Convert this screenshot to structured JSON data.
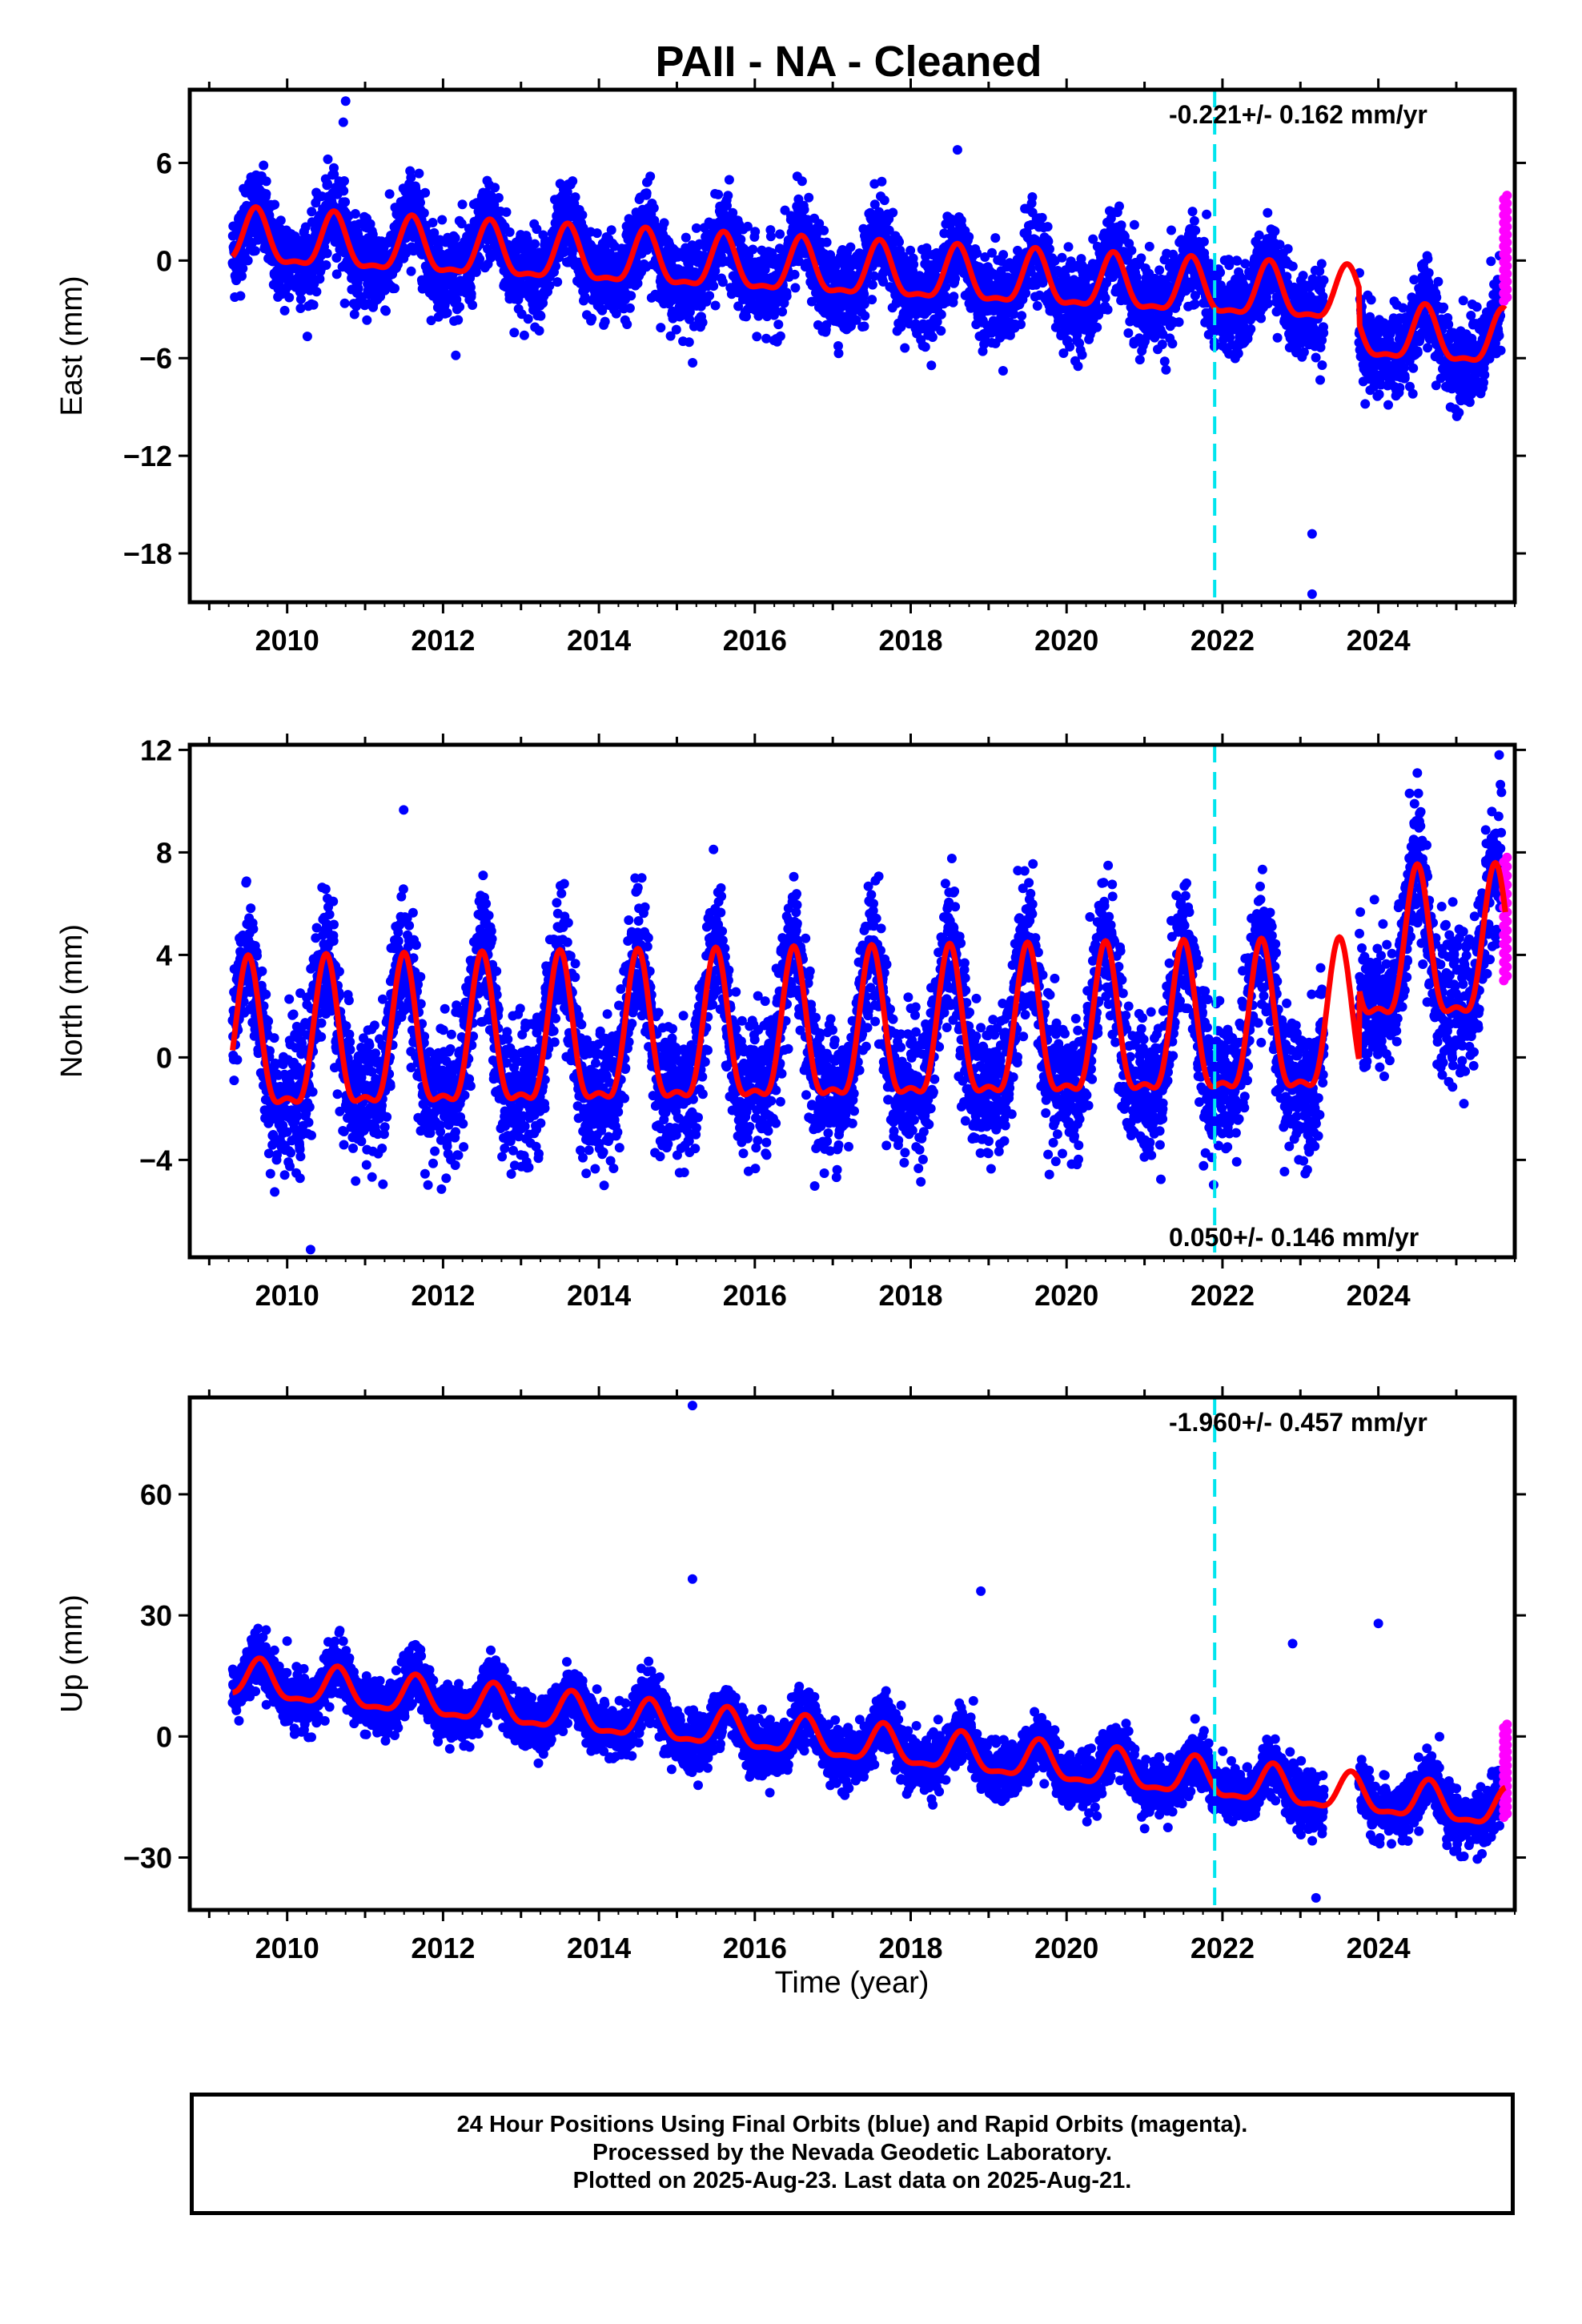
{
  "title": "PAII  - NA - Cleaned",
  "colors": {
    "final": "#0000ff",
    "rapid": "#ff00ff",
    "fit": "#ff0000",
    "event": "#00e5ee"
  },
  "xlabel": "Time (year)",
  "footer": [
    "24 Hour Positions Using Final Orbits (blue) and Rapid Orbits (magenta).",
    "Processed by the Nevada Geodetic Laboratory.",
    "Plotted on 2025-Aug-23. Last data on 2025-Aug-21."
  ],
  "chart_data": [
    {
      "type": "scatter",
      "component": "east",
      "ylabel": "East (mm)",
      "rate": "-0.221+/- 0.162 mm/yr",
      "xlim": [
        2008.75,
        2025.75
      ],
      "ylim": [
        -21,
        10.5
      ],
      "xticks": [
        2010,
        2012,
        2014,
        2016,
        2018,
        2020,
        2022,
        2024
      ],
      "yticks": [
        6,
        0,
        -6,
        -12,
        -18
      ],
      "ytick_labels": [
        "6",
        "0",
        "−6",
        "−12",
        "−18"
      ],
      "event_line": 2021.9,
      "data_start": 2009.3,
      "data_end": 2025.63,
      "gap": [
        2023.3,
        2023.75
      ],
      "trend_offset": 1.2,
      "trend_slope": -0.25,
      "annual_amp": 1.6,
      "annual_phase_peak": 0.6,
      "step_after_gap": -2.2,
      "scatter_sd": 1.3,
      "rapid_range": [
        -2.5,
        4.0
      ],
      "outliers": [
        [
          2010.75,
          9.8
        ],
        [
          2010.72,
          8.5
        ],
        [
          2018.6,
          6.8
        ],
        [
          2023.15,
          -16.8
        ],
        [
          2023.15,
          -20.5
        ]
      ],
      "rate_anchor": "top"
    },
    {
      "type": "scatter",
      "component": "north",
      "ylabel": "North (mm)",
      "rate": "0.050+/- 0.146 mm/yr",
      "xlim": [
        2008.75,
        2025.75
      ],
      "ylim": [
        -7.8,
        12.2
      ],
      "xticks": [
        2010,
        2012,
        2014,
        2016,
        2018,
        2020,
        2022,
        2024
      ],
      "yticks": [
        12,
        8,
        4,
        0,
        -4
      ],
      "ytick_labels": [
        "12",
        "8",
        "4",
        "0",
        "−4"
      ],
      "event_line": 2021.9,
      "data_start": 2009.3,
      "data_end": 2025.63,
      "gap": [
        2023.3,
        2023.75
      ],
      "trend_offset": 0.2,
      "trend_slope": 0.05,
      "annual_amp": 2.8,
      "annual_phase_peak": 0.5,
      "step_after_gap": 2.8,
      "scatter_sd": 1.3,
      "rapid_range": [
        3.0,
        7.8
      ],
      "outliers": [
        [
          2025.55,
          11.8
        ],
        [
          2024.5,
          11.1
        ],
        [
          2010.3,
          -7.5
        ],
        [
          2024.4,
          10.3
        ]
      ],
      "rate_anchor": "bottom"
    },
    {
      "type": "scatter",
      "component": "up",
      "ylabel": "Up (mm)",
      "rate": "-1.960+/- 0.457 mm/yr",
      "xlim": [
        2008.75,
        2025.75
      ],
      "ylim": [
        -43,
        84
      ],
      "xticks": [
        2010,
        2012,
        2014,
        2016,
        2018,
        2020,
        2022,
        2024
      ],
      "yticks": [
        60,
        30,
        0,
        -30
      ],
      "ytick_labels": [
        "60",
        "30",
        "0",
        "−30"
      ],
      "event_line": 2021.9,
      "data_start": 2009.3,
      "data_end": 2025.63,
      "gap": [
        2023.3,
        2023.75
      ],
      "trend_offset": 14,
      "trend_slope": -2.0,
      "annual_amp": 4.5,
      "annual_phase_peak": 0.65,
      "step_after_gap": 0,
      "scatter_sd": 3.3,
      "rapid_range": [
        -20,
        3
      ],
      "outliers": [
        [
          2015.2,
          82
        ],
        [
          2015.2,
          39
        ],
        [
          2018.9,
          36
        ],
        [
          2022.9,
          23
        ],
        [
          2024.0,
          28
        ],
        [
          2023.2,
          -40
        ]
      ],
      "rate_anchor": "top"
    }
  ]
}
